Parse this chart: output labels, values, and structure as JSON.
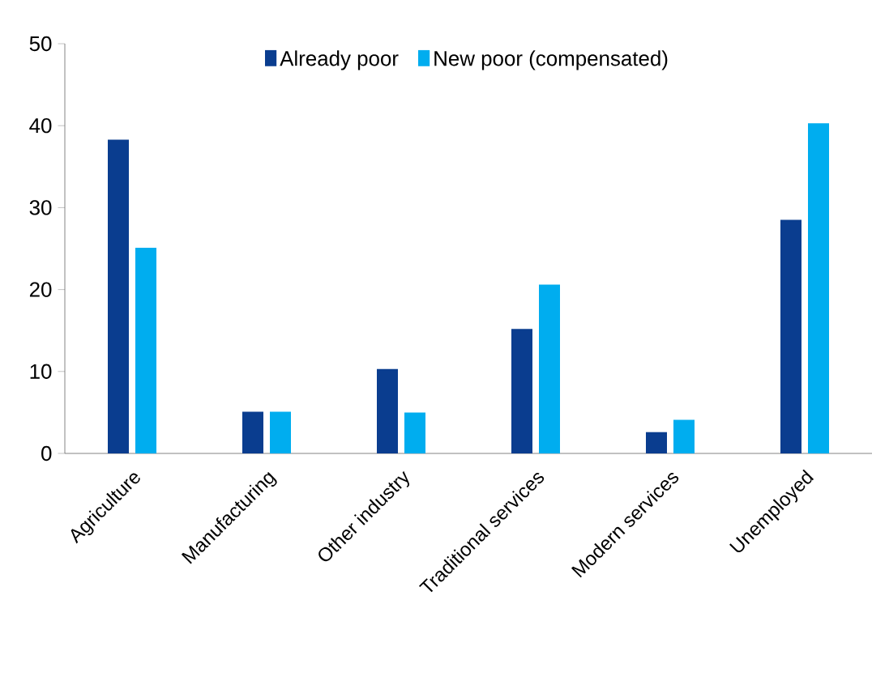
{
  "chart_data": {
    "type": "bar",
    "categories": [
      "Agriculture",
      "Manufacturing",
      "Other industry",
      "Traditional services",
      "Modern services",
      "Unemployed"
    ],
    "series": [
      {
        "name": "Already poor",
        "color": "#0a3d8f",
        "values": [
          38.3,
          5.1,
          10.3,
          15.2,
          2.6,
          28.5
        ]
      },
      {
        "name": "New poor (compensated)",
        "color": "#00adef",
        "values": [
          25.1,
          5.1,
          5.0,
          20.6,
          4.1,
          40.3
        ]
      }
    ],
    "ylim": [
      0,
      50
    ],
    "yticks": [
      0,
      10,
      20,
      30,
      40,
      50
    ],
    "grid": false,
    "legend": "top"
  }
}
